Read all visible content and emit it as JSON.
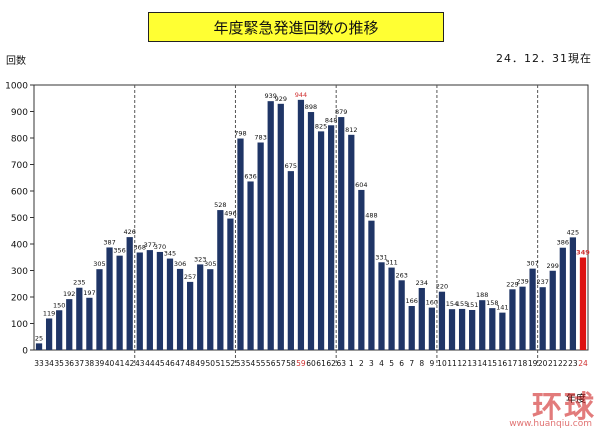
{
  "header": {
    "title": "年度緊急発進回数の推移",
    "as_of": "24．12．31現在"
  },
  "watermark": {
    "text": "环球",
    "url": "www.huanqiu.com"
  },
  "chart_data": {
    "type": "bar",
    "title": "年度緊急発進回数の推移",
    "ylabel": "回数",
    "xlabel": "年度",
    "ylim": [
      0,
      1000
    ],
    "yticks": [
      0,
      100,
      200,
      300,
      400,
      500,
      600,
      700,
      800,
      900,
      1000
    ],
    "grid": false,
    "categories": [
      "33",
      "34",
      "35",
      "36",
      "37",
      "38",
      "39",
      "40",
      "41",
      "42",
      "43",
      "44",
      "45",
      "46",
      "47",
      "48",
      "49",
      "50",
      "51",
      "52",
      "53",
      "54",
      "55",
      "56",
      "57",
      "58",
      "59",
      "60",
      "61",
      "62",
      "63",
      "1",
      "2",
      "3",
      "4",
      "5",
      "6",
      "7",
      "8",
      "9",
      "10",
      "11",
      "12",
      "13",
      "14",
      "15",
      "16",
      "17",
      "18",
      "19",
      "20",
      "21",
      "22",
      "23",
      "24"
    ],
    "values": [
      25,
      119,
      150,
      192,
      235,
      197,
      305,
      387,
      356,
      426,
      368,
      377,
      370,
      345,
      306,
      257,
      323,
      305,
      528,
      496,
      798,
      636,
      783,
      939,
      929,
      675,
      944,
      898,
      825,
      848,
      879,
      812,
      604,
      488,
      331,
      311,
      263,
      166,
      234,
      160,
      220,
      154,
      155,
      151,
      188,
      158,
      141,
      229,
      239,
      307,
      237,
      299,
      386,
      425,
      349
    ],
    "highlight_label_color": "#d03030",
    "highlight_labels": [
      "59",
      "24"
    ],
    "highlight_bar": "24",
    "bar_color": "#1f3566",
    "highlight_bar_color": "#dd1111",
    "era_dividers_after": [
      "42",
      "52",
      "62",
      "9",
      "19"
    ]
  }
}
